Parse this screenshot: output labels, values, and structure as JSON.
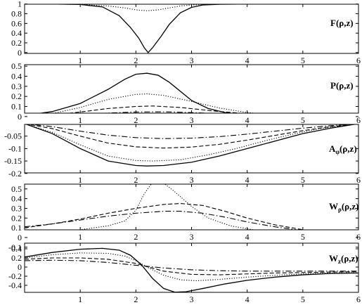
{
  "chart_data": [
    {
      "type": "line",
      "panel_label": "F(ρ,z)",
      "xlim": [
        0,
        6
      ],
      "ylim": [
        0,
        1
      ],
      "x_ticks": [
        "1",
        "2",
        "3",
        "4",
        "5",
        "6"
      ],
      "y_ticks": [
        "1",
        "0.8",
        "0.6",
        "0.4",
        "0.2",
        "0"
      ],
      "series": [
        {
          "style": "solid",
          "x": [
            0,
            0.5,
            1,
            1.4,
            1.7,
            1.9,
            2.05,
            2.15,
            2.22,
            2.3,
            2.45,
            2.6,
            2.8,
            3.0,
            3.2,
            3.5,
            4,
            5,
            6
          ],
          "y": [
            1,
            1,
            0.99,
            0.94,
            0.76,
            0.52,
            0.3,
            0.1,
            0.0,
            0.1,
            0.33,
            0.58,
            0.82,
            0.93,
            0.98,
            0.995,
            1,
            1,
            1
          ]
        },
        {
          "style": "dotted",
          "x": [
            0,
            0.5,
            1,
            1.5,
            1.8,
            2.0,
            2.2,
            2.4,
            2.6,
            2.8,
            3.0,
            3.2,
            3.5,
            4,
            5,
            6
          ],
          "y": [
            1,
            1,
            0.99,
            0.96,
            0.92,
            0.88,
            0.86,
            0.88,
            0.92,
            0.96,
            0.98,
            0.99,
            1,
            1,
            1,
            1
          ]
        }
      ]
    },
    {
      "type": "line",
      "panel_label": "P(ρ,z)",
      "xlim": [
        0,
        6
      ],
      "ylim": [
        0,
        0.5
      ],
      "x_ticks": [
        "1",
        "2",
        "3",
        "4",
        "5",
        "6"
      ],
      "y_ticks": [
        "0.5",
        "0.4",
        "0.3",
        "0.2",
        "0.1",
        "0"
      ],
      "series": [
        {
          "style": "solid",
          "x": [
            0,
            0.5,
            1,
            1.5,
            1.8,
            2.0,
            2.2,
            2.4,
            2.6,
            2.8,
            3.0,
            3.3,
            3.6,
            4,
            4.5,
            5,
            5.5,
            6
          ],
          "y": [
            0.01,
            0.05,
            0.13,
            0.27,
            0.37,
            0.42,
            0.43,
            0.41,
            0.34,
            0.25,
            0.16,
            0.08,
            0.04,
            0.015,
            0.006,
            0.002,
            0.001,
            0
          ]
        },
        {
          "style": "dotted",
          "x": [
            0,
            0.5,
            1,
            1.5,
            2.0,
            2.2,
            2.5,
            3.0,
            3.5,
            4,
            4.5,
            5,
            5.5,
            6
          ],
          "y": [
            0.005,
            0.03,
            0.09,
            0.17,
            0.22,
            0.225,
            0.21,
            0.15,
            0.085,
            0.04,
            0.015,
            0.006,
            0.002,
            0
          ]
        },
        {
          "style": "dashed",
          "x": [
            0,
            0.5,
            1,
            1.5,
            2.0,
            2.3,
            2.8,
            3.5,
            4,
            4.5,
            5,
            5.5,
            6
          ],
          "y": [
            0.002,
            0.015,
            0.045,
            0.08,
            0.1,
            0.105,
            0.09,
            0.05,
            0.028,
            0.013,
            0.005,
            0.002,
            0
          ]
        },
        {
          "style": "dashdot",
          "x": [
            0,
            0.5,
            1,
            1.5,
            2.0,
            2.5,
            3.0,
            3.5,
            4,
            4.5,
            5,
            5.5,
            6
          ],
          "y": [
            0.001,
            0.008,
            0.02,
            0.035,
            0.045,
            0.047,
            0.04,
            0.028,
            0.017,
            0.008,
            0.003,
            0.001,
            0
          ]
        }
      ]
    },
    {
      "type": "line",
      "panel_label": "Aφ(ρ,z)",
      "xlim": [
        0,
        6
      ],
      "ylim": [
        -0.2,
        0
      ],
      "x_ticks": [
        "1",
        "2",
        "3",
        "4",
        "5",
        "6"
      ],
      "y_ticks": [
        "-0.05",
        "-0.1",
        "-0.15",
        "-0.2"
      ],
      "series": [
        {
          "style": "solid",
          "x": [
            0,
            0.5,
            1,
            1.5,
            2.0,
            2.2,
            2.5,
            3.0,
            3.5,
            4,
            4.5,
            5,
            5.5,
            6
          ],
          "y": [
            0,
            -0.04,
            -0.1,
            -0.15,
            -0.168,
            -0.17,
            -0.168,
            -0.155,
            -0.13,
            -0.1,
            -0.07,
            -0.04,
            -0.018,
            0
          ]
        },
        {
          "style": "dotted",
          "x": [
            0,
            0.5,
            1,
            1.5,
            2.0,
            2.3,
            2.8,
            3.3,
            3.8,
            4.3,
            4.8,
            5.3,
            6
          ],
          "y": [
            0,
            -0.035,
            -0.085,
            -0.13,
            -0.148,
            -0.15,
            -0.145,
            -0.125,
            -0.1,
            -0.07,
            -0.043,
            -0.02,
            0
          ]
        },
        {
          "style": "dashed",
          "x": [
            0,
            0.5,
            1,
            1.5,
            2.0,
            2.5,
            3.0,
            3.5,
            4,
            4.5,
            5,
            5.5,
            6
          ],
          "y": [
            0,
            -0.02,
            -0.05,
            -0.078,
            -0.093,
            -0.098,
            -0.094,
            -0.083,
            -0.066,
            -0.047,
            -0.028,
            -0.012,
            0
          ]
        },
        {
          "style": "dashdot",
          "x": [
            0,
            0.5,
            1,
            1.5,
            2.0,
            2.5,
            3.0,
            3.5,
            4,
            4.5,
            5,
            5.5,
            6
          ],
          "y": [
            0,
            -0.012,
            -0.03,
            -0.046,
            -0.056,
            -0.06,
            -0.058,
            -0.052,
            -0.042,
            -0.03,
            -0.018,
            -0.008,
            0
          ]
        }
      ]
    },
    {
      "type": "line",
      "panel_label": "Wρ(ρ,z)",
      "xlim": [
        0,
        6
      ],
      "ylim": [
        -0.1,
        0.6
      ],
      "x_ticks": [
        "1",
        "2",
        "3",
        "4",
        "5",
        "6"
      ],
      "y_ticks": [
        "0.5",
        "0.4",
        "0.3",
        "0.2",
        "0.1",
        "0",
        "-0.1"
      ],
      "series": [
        {
          "style": "dotted",
          "x": [
            0,
            0.5,
            1,
            1.5,
            1.8,
            2.0,
            2.15,
            2.3,
            2.5,
            2.7,
            3.0,
            3.3,
            3.7,
            4.2,
            5,
            6
          ],
          "y": [
            0.05,
            0.06,
            0.08,
            0.12,
            0.17,
            0.28,
            0.45,
            0.57,
            0.56,
            0.47,
            0.32,
            0.2,
            0.12,
            0.07,
            0.03,
            0.01
          ]
        },
        {
          "style": "dashed",
          "x": [
            0,
            0.5,
            1,
            1.5,
            2.0,
            2.5,
            2.8,
            3.2,
            3.6,
            4,
            4.5,
            5,
            5.5,
            6
          ],
          "y": [
            0.1,
            0.14,
            0.19,
            0.25,
            0.3,
            0.34,
            0.35,
            0.33,
            0.27,
            0.2,
            0.13,
            0.08,
            0.05,
            0.04
          ]
        },
        {
          "style": "dashdot",
          "x": [
            0,
            0.5,
            1,
            1.5,
            2.0,
            2.5,
            2.8,
            3.2,
            3.6,
            4,
            4.5,
            5,
            5.5,
            6
          ],
          "y": [
            0.11,
            0.14,
            0.18,
            0.22,
            0.25,
            0.27,
            0.27,
            0.25,
            0.21,
            0.16,
            0.11,
            0.07,
            0.05,
            0.04
          ]
        }
      ]
    },
    {
      "type": "line",
      "panel_label": "Wz(ρ,z)",
      "xlim": [
        0,
        6
      ],
      "ylim": [
        -0.6,
        0.5
      ],
      "x_ticks": [
        "1",
        "2",
        "3",
        "4",
        "5",
        "6"
      ],
      "y_ticks": [
        "0.4",
        "0.2",
        "0",
        "-0.2",
        "-0.4"
      ],
      "series": [
        {
          "style": "solid",
          "x": [
            0,
            0.5,
            1,
            1.4,
            1.7,
            1.9,
            2.1,
            2.3,
            2.5,
            2.7,
            2.9,
            3.2,
            3.6,
            4,
            4.5,
            5,
            5.5,
            6
          ],
          "y": [
            0.22,
            0.32,
            0.39,
            0.41,
            0.37,
            0.26,
            0.05,
            -0.25,
            -0.47,
            -0.55,
            -0.54,
            -0.47,
            -0.37,
            -0.29,
            -0.22,
            -0.17,
            -0.14,
            -0.13
          ]
        },
        {
          "style": "dotted",
          "x": [
            0,
            0.5,
            1,
            1.5,
            1.8,
            2.0,
            2.2,
            2.5,
            2.8,
            3.1,
            3.5,
            4,
            4.5,
            5,
            5.5,
            6
          ],
          "y": [
            0.2,
            0.27,
            0.31,
            0.3,
            0.24,
            0.14,
            0.0,
            -0.18,
            -0.28,
            -0.3,
            -0.27,
            -0.22,
            -0.18,
            -0.15,
            -0.13,
            -0.12
          ]
        },
        {
          "style": "dashed",
          "x": [
            0,
            0.5,
            1,
            1.5,
            2.0,
            2.2,
            2.5,
            3.0,
            3.5,
            4,
            4.5,
            5,
            5.5,
            6
          ],
          "y": [
            0.17,
            0.2,
            0.2,
            0.17,
            0.08,
            0.01,
            -0.09,
            -0.16,
            -0.17,
            -0.15,
            -0.13,
            -0.12,
            -0.11,
            -0.1
          ]
        },
        {
          "style": "dashdot",
          "x": [
            0,
            0.5,
            1,
            1.5,
            2.0,
            2.5,
            3.0,
            3.5,
            4,
            4.5,
            5,
            5.5,
            6
          ],
          "y": [
            0.14,
            0.15,
            0.14,
            0.1,
            0.04,
            -0.02,
            -0.06,
            -0.08,
            -0.09,
            -0.09,
            -0.09,
            -0.09,
            -0.09
          ]
        }
      ]
    }
  ]
}
